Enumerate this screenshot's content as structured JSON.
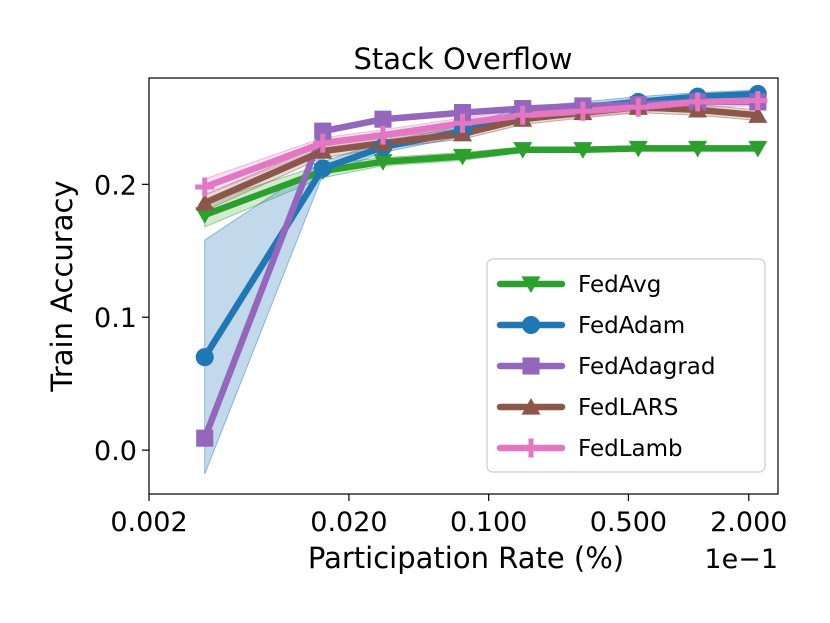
{
  "chart_data": {
    "type": "line",
    "title": "Stack Overflow",
    "xlabel": "Participation Rate (%)",
    "ylabel": "Train Accuracy",
    "x_scale": "log",
    "x_offset_label": "1e−1",
    "xlim": [
      0.002,
      2.8
    ],
    "ylim": [
      -0.033,
      0.28
    ],
    "x_ticks": [
      0.002,
      0.02,
      0.1,
      0.5,
      2.0
    ],
    "x_tick_labels": [
      "0.002",
      "0.020",
      "0.100",
      "0.500",
      "2.000"
    ],
    "y_ticks": [
      0.0,
      0.1,
      0.2
    ],
    "y_tick_labels": [
      "0.0",
      "0.1",
      "0.2"
    ],
    "grid": false,
    "legend_position": "lower-right",
    "x": [
      0.0038,
      0.0148,
      0.0296,
      0.074,
      0.148,
      0.296,
      0.56,
      1.11,
      2.22
    ],
    "series": [
      {
        "name": "FedAvg",
        "color": "#2ca02c",
        "marker": "triangle-down",
        "values": [
          0.177,
          0.21,
          0.217,
          0.221,
          0.226,
          0.226,
          0.227,
          0.227,
          0.227
        ],
        "band": [
          [
            0.168,
            0.186
          ],
          [
            0.205,
            0.215
          ],
          [
            0.214,
            0.22
          ],
          [
            0.218,
            0.224
          ],
          [
            0.224,
            0.228
          ],
          [
            0.224,
            0.228
          ],
          [
            0.225,
            0.229
          ],
          [
            0.225,
            0.229
          ],
          [
            0.225,
            0.229
          ]
        ]
      },
      {
        "name": "FedAdam",
        "color": "#1f77b4",
        "marker": "circle",
        "values": [
          0.07,
          0.212,
          0.228,
          0.24,
          0.254,
          0.258,
          0.262,
          0.266,
          0.268
        ],
        "band": [
          [
            -0.018,
            0.158
          ],
          [
            0.207,
            0.217
          ],
          [
            0.224,
            0.232
          ],
          [
            0.236,
            0.244
          ],
          [
            0.25,
            0.258
          ],
          [
            0.254,
            0.262
          ],
          [
            0.258,
            0.266
          ],
          [
            0.263,
            0.269
          ],
          [
            0.265,
            0.271
          ]
        ]
      },
      {
        "name": "FedAdagrad",
        "color": "#9467bd",
        "marker": "square",
        "values": [
          0.009,
          0.24,
          0.249,
          0.254,
          0.257,
          0.259,
          0.26,
          0.262,
          0.262
        ],
        "band": null
      },
      {
        "name": "FedLARS",
        "color": "#8c564b",
        "marker": "triangle-up",
        "values": [
          0.186,
          0.225,
          0.231,
          0.238,
          0.249,
          0.254,
          0.258,
          0.256,
          0.252
        ],
        "band": [
          [
            0.18,
            0.192
          ],
          [
            0.22,
            0.23
          ],
          [
            0.227,
            0.235
          ],
          [
            0.234,
            0.242
          ],
          [
            0.245,
            0.253
          ],
          [
            0.25,
            0.258
          ],
          [
            0.254,
            0.262
          ],
          [
            0.252,
            0.26
          ],
          [
            0.248,
            0.256
          ]
        ]
      },
      {
        "name": "FedLamb",
        "color": "#e377c2",
        "marker": "plus",
        "values": [
          0.198,
          0.231,
          0.237,
          0.246,
          0.252,
          0.255,
          0.258,
          0.262,
          0.263
        ],
        "band": [
          [
            0.192,
            0.204
          ],
          [
            0.227,
            0.235
          ],
          [
            0.233,
            0.241
          ],
          [
            0.242,
            0.25
          ],
          [
            0.248,
            0.256
          ],
          [
            0.251,
            0.259
          ],
          [
            0.254,
            0.262
          ],
          [
            0.258,
            0.266
          ],
          [
            0.259,
            0.267
          ]
        ]
      }
    ]
  }
}
